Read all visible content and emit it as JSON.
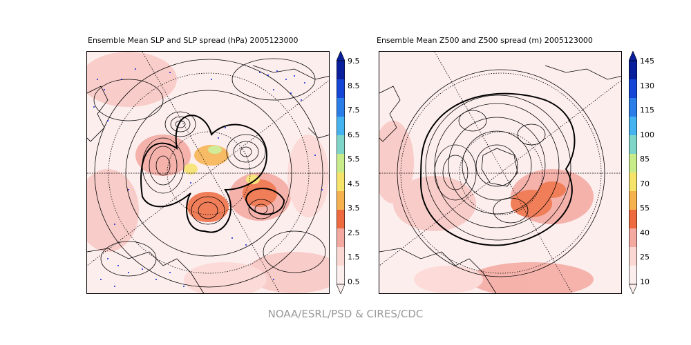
{
  "left_panel": {
    "title": "Ensemble Mean SLP and SLP spread (hPa) 2005123000",
    "colorbar_ticks": [
      "9.5",
      "8.5",
      "7.5",
      "6.5",
      "5.5",
      "4.5",
      "3.5",
      "2.5",
      "1.5",
      "0.5"
    ],
    "colorbar_colors": [
      "#0a1f9c",
      "#1646d6",
      "#2b7de8",
      "#45b3f0",
      "#7fd6c8",
      "#c9ec8a",
      "#f6e36a",
      "#f6b24e",
      "#ee6b40",
      "#f3a8a0",
      "#fbd7d3",
      "#fdeeee"
    ]
  },
  "right_panel": {
    "title": "Ensemble Mean Z500 and Z500 spread (m) 2005123000",
    "colorbar_ticks": [
      "145",
      "130",
      "115",
      "100",
      "85",
      "70",
      "55",
      "40",
      "25",
      "10"
    ],
    "colorbar_colors": [
      "#0a1f9c",
      "#1646d6",
      "#2b7de8",
      "#45b3f0",
      "#7fd6c8",
      "#c9ec8a",
      "#f6e36a",
      "#f6b24e",
      "#ee6b40",
      "#f3a8a0",
      "#fbd7d3",
      "#fdeeee"
    ]
  },
  "credit": "NOAA/ESRL/PSD & CIRES/CDC"
}
